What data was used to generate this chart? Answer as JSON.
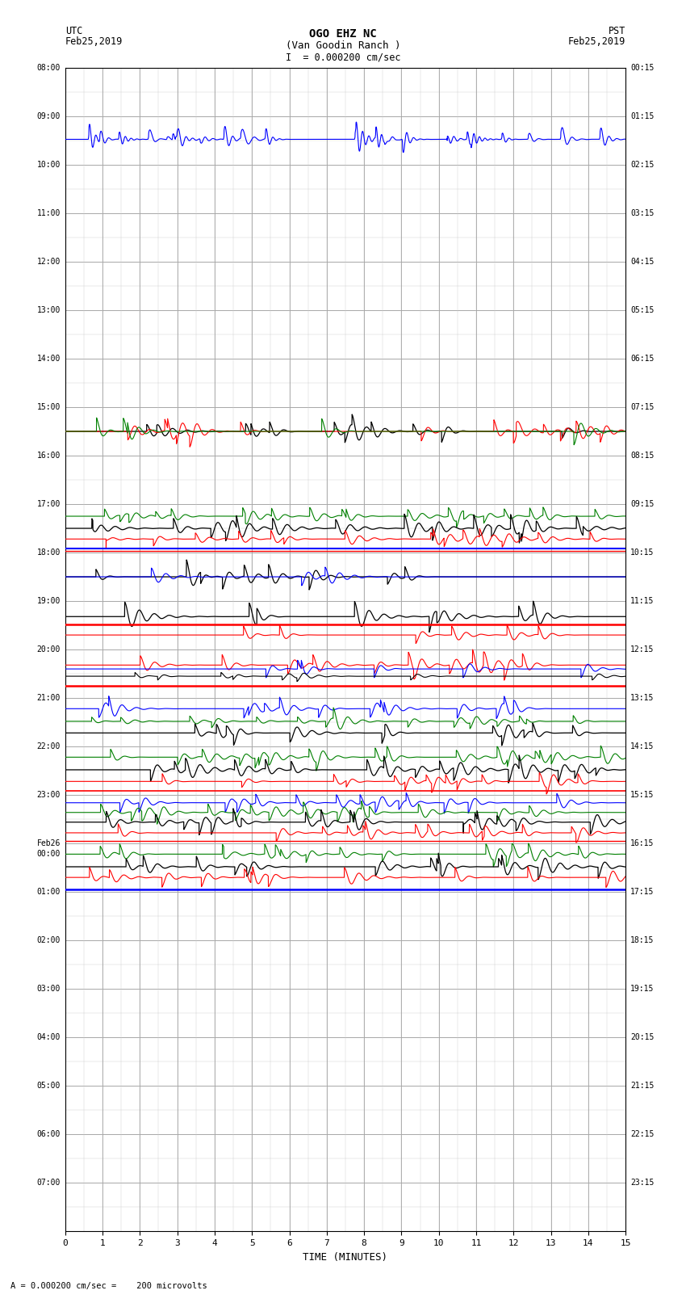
{
  "title_line1": "OGO EHZ NC",
  "title_line2": "(Van Goodin Ranch )",
  "title_scale": "I  = 0.000200 cm/sec",
  "top_left_label1": "UTC",
  "top_left_label2": "Feb25,2019",
  "top_right_label1": "PST",
  "top_right_label2": "Feb25,2019",
  "bottom_label": "TIME (MINUTES)",
  "footer_text": "= 0.000200 cm/sec =    200 microvolts",
  "xlabel_ticks": [
    0,
    1,
    2,
    3,
    4,
    5,
    6,
    7,
    8,
    9,
    10,
    11,
    12,
    13,
    14,
    15
  ],
  "xlim": [
    0,
    15
  ],
  "utc_times": [
    "08:00",
    "09:00",
    "10:00",
    "11:00",
    "12:00",
    "13:00",
    "14:00",
    "15:00",
    "16:00",
    "17:00",
    "18:00",
    "19:00",
    "20:00",
    "21:00",
    "22:00",
    "23:00",
    "Feb26\n00:00",
    "01:00",
    "02:00",
    "03:00",
    "04:00",
    "05:00",
    "06:00",
    "07:00"
  ],
  "pst_times": [
    "00:15",
    "01:15",
    "02:15",
    "03:15",
    "04:15",
    "05:15",
    "06:15",
    "07:15",
    "08:15",
    "09:15",
    "10:15",
    "11:15",
    "12:15",
    "13:15",
    "14:15",
    "15:15",
    "16:15",
    "17:15",
    "18:15",
    "19:15",
    "20:15",
    "21:15",
    "22:15",
    "23:15"
  ],
  "n_rows": 24,
  "fig_width": 8.5,
  "fig_height": 16.13,
  "background_color": "#ffffff",
  "grid_color": "#999999",
  "minor_grid_color": "#cccccc"
}
